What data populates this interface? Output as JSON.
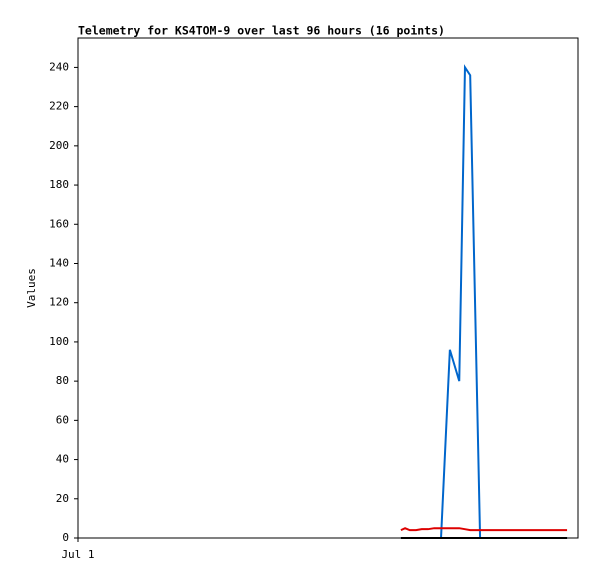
{
  "chart_data": {
    "type": "line",
    "title": "Telemetry for KS4TOM-9 over last 96 hours (16 points)",
    "y_label": "Values",
    "x": [
      62,
      62.8,
      63.7,
      64.9,
      66,
      67.2,
      68.4,
      69.7,
      71.4,
      73.2,
      74.3,
      75.3,
      77.2,
      81,
      86.8,
      93.9
    ],
    "xlim": [
      0,
      96
    ],
    "xticks": [
      {
        "value": 0,
        "label": "Jul 1"
      }
    ],
    "ylim": [
      0,
      255
    ],
    "yticks": [
      0,
      20,
      40,
      60,
      80,
      100,
      120,
      140,
      160,
      180,
      200,
      220,
      240
    ],
    "series": [
      {
        "color": "#0066cc",
        "values": [
          0,
          0,
          0,
          0,
          0,
          0,
          0,
          0,
          96,
          80,
          240,
          236,
          0,
          0,
          0,
          0
        ]
      },
      {
        "color": "#dd0000",
        "values": [
          4,
          5,
          4,
          4,
          4.5,
          4.5,
          5,
          5,
          5,
          5,
          4.5,
          4,
          4,
          4,
          4,
          4
        ]
      },
      {
        "color": "#000000",
        "values": [
          0,
          0,
          0,
          0,
          0,
          0,
          0,
          0,
          0,
          0,
          0,
          0,
          0,
          0,
          0,
          0
        ]
      }
    ]
  }
}
